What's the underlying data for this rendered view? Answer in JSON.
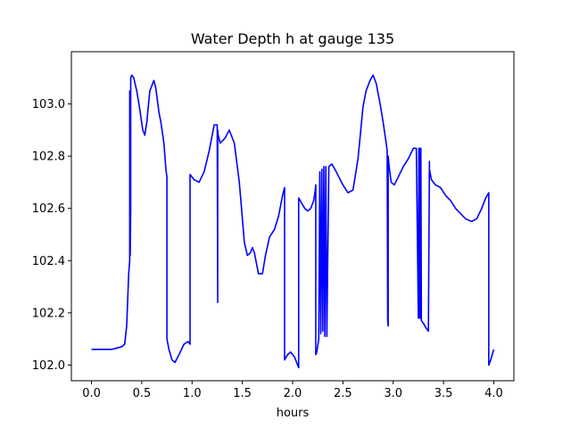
{
  "chart_data": {
    "type": "line",
    "title": "Water Depth h at gauge 135",
    "xlabel": "hours",
    "ylabel": "",
    "xlim": [
      -0.2,
      4.2
    ],
    "ylim": [
      101.94,
      103.2
    ],
    "xticks": [
      0.0,
      0.5,
      1.0,
      1.5,
      2.0,
      2.5,
      3.0,
      3.5,
      4.0
    ],
    "xtick_labels": [
      "0.0",
      "0.5",
      "1.0",
      "1.5",
      "2.0",
      "2.5",
      "3.0",
      "3.5",
      "4.0"
    ],
    "yticks": [
      102.0,
      102.2,
      102.4,
      102.6,
      102.8,
      103.0
    ],
    "ytick_labels": [
      "102.0",
      "102.2",
      "102.4",
      "102.6",
      "102.8",
      "103.0"
    ],
    "grid": false,
    "line_color": "#0000ff",
    "series": [
      {
        "x": [
          0.0,
          0.2,
          0.3,
          0.33,
          0.35,
          0.37,
          0.38,
          0.38,
          0.385,
          0.39,
          0.39,
          0.4,
          0.42,
          0.45,
          0.48,
          0.51,
          0.53,
          0.55,
          0.58,
          0.62,
          0.64,
          0.67,
          0.69,
          0.72,
          0.74,
          0.75,
          0.75,
          0.77,
          0.8,
          0.83,
          0.87,
          0.92,
          0.96,
          0.98,
          0.98,
          1.02,
          1.07,
          1.12,
          1.17,
          1.22,
          1.25,
          1.255,
          1.255,
          1.26,
          1.28,
          1.33,
          1.37,
          1.42,
          1.47,
          1.52,
          1.55,
          1.58,
          1.6,
          1.62,
          1.66,
          1.7,
          1.73,
          1.77,
          1.82,
          1.86,
          1.9,
          1.92,
          1.92,
          1.95,
          1.98,
          2.02,
          2.05,
          2.06,
          2.06,
          2.09,
          2.12,
          2.15,
          2.18,
          2.21,
          2.225,
          2.23,
          2.23,
          2.24,
          2.26,
          2.27,
          2.28,
          2.29,
          2.3,
          2.31,
          2.32,
          2.33,
          2.34,
          2.36,
          2.39,
          2.42,
          2.46,
          2.5,
          2.55,
          2.6,
          2.65,
          2.7,
          2.73,
          2.77,
          2.8,
          2.83,
          2.87,
          2.9,
          2.93,
          2.94,
          2.945,
          2.95,
          2.95,
          2.96,
          2.98,
          3.01,
          3.05,
          3.1,
          3.15,
          3.2,
          3.23,
          3.25,
          3.255,
          3.26,
          3.265,
          3.27,
          3.275,
          3.28,
          3.3,
          3.33,
          3.35,
          3.36,
          3.36,
          3.38,
          3.42,
          3.47,
          3.52,
          3.57,
          3.62,
          3.67,
          3.72,
          3.78,
          3.83,
          3.88,
          3.92,
          3.95,
          3.95,
          3.97,
          4.0
        ],
        "y": [
          102.06,
          102.06,
          102.07,
          102.08,
          102.15,
          102.35,
          102.4,
          103.05,
          102.42,
          102.6,
          103.1,
          103.11,
          103.1,
          103.05,
          102.98,
          102.9,
          102.88,
          102.93,
          103.05,
          103.09,
          103.06,
          102.97,
          102.93,
          102.85,
          102.75,
          102.72,
          102.1,
          102.06,
          102.02,
          102.01,
          102.04,
          102.08,
          102.09,
          102.08,
          102.73,
          102.71,
          102.7,
          102.74,
          102.82,
          102.92,
          102.92,
          102.24,
          102.9,
          102.88,
          102.85,
          102.87,
          102.9,
          102.85,
          102.7,
          102.47,
          102.42,
          102.43,
          102.45,
          102.43,
          102.35,
          102.35,
          102.42,
          102.49,
          102.52,
          102.57,
          102.65,
          102.68,
          102.02,
          102.04,
          102.05,
          102.03,
          102.0,
          101.99,
          102.64,
          102.62,
          102.6,
          102.59,
          102.6,
          102.63,
          102.67,
          102.69,
          102.04,
          102.05,
          102.1,
          102.74,
          102.12,
          102.75,
          102.13,
          102.76,
          102.11,
          102.76,
          102.11,
          102.76,
          102.77,
          102.75,
          102.72,
          102.69,
          102.66,
          102.67,
          102.79,
          102.99,
          103.05,
          103.09,
          103.11,
          103.08,
          103.0,
          102.93,
          102.85,
          102.82,
          102.17,
          102.15,
          102.8,
          102.76,
          102.7,
          102.69,
          102.72,
          102.76,
          102.79,
          102.83,
          102.83,
          102.18,
          102.83,
          102.18,
          102.83,
          102.18,
          102.83,
          102.17,
          102.16,
          102.14,
          102.13,
          102.78,
          102.75,
          102.71,
          102.69,
          102.68,
          102.65,
          102.63,
          102.6,
          102.58,
          102.56,
          102.55,
          102.56,
          102.6,
          102.64,
          102.66,
          102.0,
          102.02,
          102.06
        ]
      }
    ]
  }
}
